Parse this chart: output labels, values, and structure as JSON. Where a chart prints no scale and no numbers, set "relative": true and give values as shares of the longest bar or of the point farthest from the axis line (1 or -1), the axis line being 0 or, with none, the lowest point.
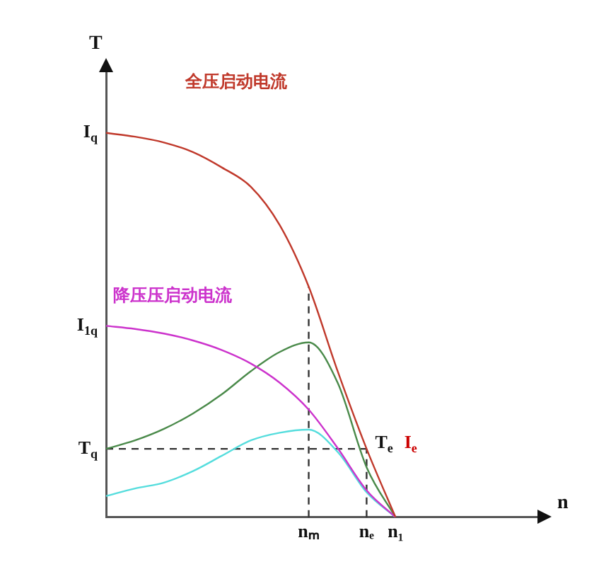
{
  "chart_data": {
    "type": "line",
    "relative": true,
    "xlabel": "n",
    "ylabel": "T",
    "categories": [
      null,
      null,
      null,
      null,
      null,
      null,
      null,
      "nₘ",
      null,
      "nₑ",
      "n₁",
      null,
      null,
      null,
      null,
      null
    ],
    "grid": false,
    "legend": false,
    "marker": "none",
    "series": [
      {
        "name": "全压启动电流",
        "color": "#c0392b",
        "values": [
          1,
          0.99,
          0.975,
          0.95,
          0.91,
          0.86,
          0.76,
          0.6,
          0.38,
          0.178,
          0,
          null,
          null,
          null,
          null,
          null
        ]
      },
      {
        "name": "降压压启动电流",
        "color": "#cc33cc",
        "values": [
          0.498,
          0.49,
          0.478,
          0.46,
          0.435,
          0.4,
          0.35,
          0.28,
          0.18,
          0.07,
          0,
          null,
          null,
          null,
          null,
          null
        ]
      },
      {
        "color": "#4a8a4a",
        "values": [
          0.178,
          0.2,
          0.23,
          0.27,
          0.32,
          0.38,
          0.43,
          0.455,
          0.35,
          0.13,
          0,
          null,
          null,
          null,
          null,
          null
        ]
      },
      {
        "color": "#55dddd",
        "values": [
          0.055,
          0.075,
          0.09,
          0.12,
          0.16,
          0.2,
          0.22,
          0.228,
          0.17,
          0.065,
          0,
          null,
          null,
          null,
          null,
          null
        ]
      }
    ],
    "ref_lines": [
      {
        "axis": "y",
        "value": 0.178,
        "line_style": "dashed",
        "color": "#333333"
      },
      {
        "axis": "x",
        "value": "nₘ",
        "line_style": "dashed",
        "color": "#333333"
      },
      {
        "axis": "x",
        "value": "nₑ",
        "line_style": "dashed",
        "color": "#333333"
      }
    ],
    "annotations": [
      "I$_{q}$",
      "I$_{1q}$",
      "T$_{q}$",
      {
        "text": "T$_{e}$",
        "x": "nₑ",
        "y": 0.178
      },
      "I$_{e}$"
    ]
  }
}
